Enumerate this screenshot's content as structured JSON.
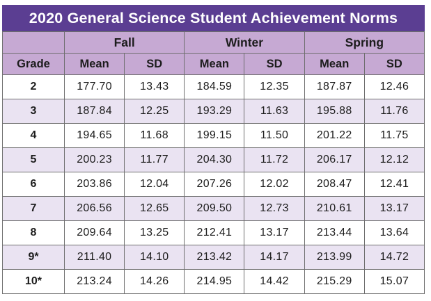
{
  "title": "2020 General Science Student Achievement Norms",
  "colors": {
    "title_bg": "#5b3e92",
    "title_text": "#ffffff",
    "header_bg": "#c6a9d3",
    "stripe_bg": "#eae3f2",
    "row_bg": "#ffffff",
    "border": "#6e6e6e",
    "text": "#1c1c1c"
  },
  "table": {
    "grade_header": "Grade",
    "season_headers": [
      "Fall",
      "Winter",
      "Spring"
    ],
    "sub_headers": [
      "Mean",
      "SD",
      "Mean",
      "SD",
      "Mean",
      "SD"
    ],
    "rows": [
      {
        "grade": "2",
        "values": [
          "177.70",
          "13.43",
          "184.59",
          "12.35",
          "187.87",
          "12.46"
        ]
      },
      {
        "grade": "3",
        "values": [
          "187.84",
          "12.25",
          "193.29",
          "11.63",
          "195.88",
          "11.76"
        ]
      },
      {
        "grade": "4",
        "values": [
          "194.65",
          "11.68",
          "199.15",
          "11.50",
          "201.22",
          "11.75"
        ]
      },
      {
        "grade": "5",
        "values": [
          "200.23",
          "11.77",
          "204.30",
          "11.72",
          "206.17",
          "12.12"
        ]
      },
      {
        "grade": "6",
        "values": [
          "203.86",
          "12.04",
          "207.26",
          "12.02",
          "208.47",
          "12.41"
        ]
      },
      {
        "grade": "7",
        "values": [
          "206.56",
          "12.65",
          "209.50",
          "12.73",
          "210.61",
          "13.17"
        ]
      },
      {
        "grade": "8",
        "values": [
          "209.64",
          "13.25",
          "212.41",
          "13.17",
          "213.44",
          "13.64"
        ]
      },
      {
        "grade": "9*",
        "values": [
          "211.40",
          "14.10",
          "213.42",
          "14.17",
          "213.99",
          "14.72"
        ]
      },
      {
        "grade": "10*",
        "values": [
          "213.24",
          "14.26",
          "214.95",
          "14.42",
          "215.29",
          "15.07"
        ]
      }
    ]
  },
  "chart_data": {
    "type": "table",
    "title": "2020 General Science Student Achievement Norms",
    "columns": [
      "Grade",
      "Fall Mean",
      "Fall SD",
      "Winter Mean",
      "Winter SD",
      "Spring Mean",
      "Spring SD"
    ],
    "rows": [
      [
        "2",
        177.7,
        13.43,
        184.59,
        12.35,
        187.87,
        12.46
      ],
      [
        "3",
        187.84,
        12.25,
        193.29,
        11.63,
        195.88,
        11.76
      ],
      [
        "4",
        194.65,
        11.68,
        199.15,
        11.5,
        201.22,
        11.75
      ],
      [
        "5",
        200.23,
        11.77,
        204.3,
        11.72,
        206.17,
        12.12
      ],
      [
        "6",
        203.86,
        12.04,
        207.26,
        12.02,
        208.47,
        12.41
      ],
      [
        "7",
        206.56,
        12.65,
        209.5,
        12.73,
        210.61,
        13.17
      ],
      [
        "8",
        209.64,
        13.25,
        212.41,
        13.17,
        213.44,
        13.64
      ],
      [
        "9*",
        211.4,
        14.1,
        213.42,
        14.17,
        213.99,
        14.72
      ],
      [
        "10*",
        213.24,
        14.26,
        214.95,
        14.42,
        215.29,
        15.07
      ]
    ]
  }
}
